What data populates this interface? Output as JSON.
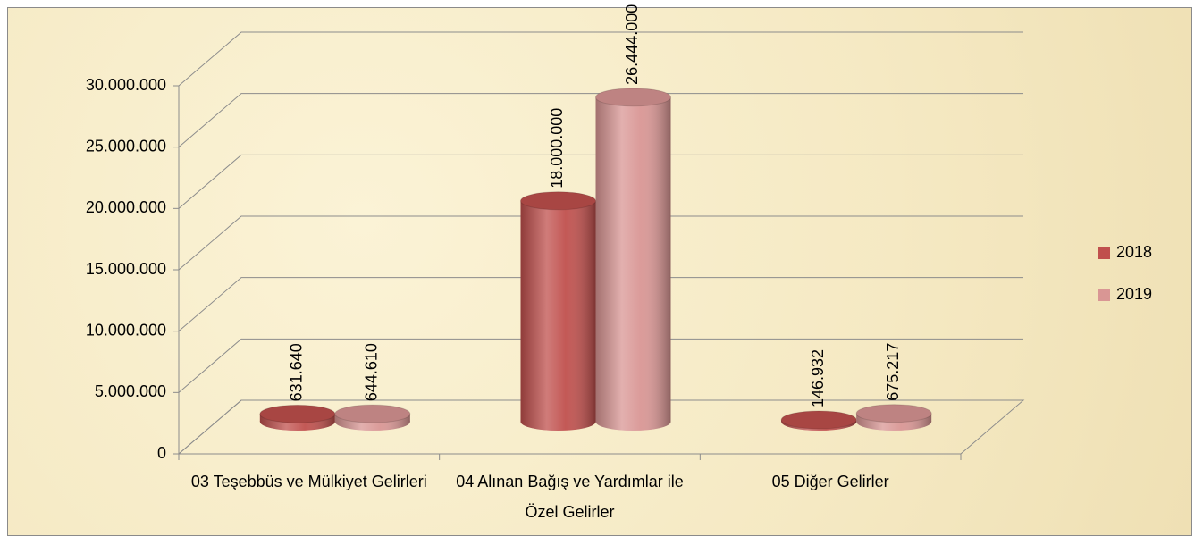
{
  "chart_data": {
    "type": "bar3d",
    "categories": [
      "03 Teşebbüs ve Mülkiyet Gelirleri",
      "04 Alınan Bağış ve Yardımlar ile Özel Gelirler",
      "05 Diğer Gelirler"
    ],
    "series": [
      {
        "name": "2018",
        "color": "#c0504d",
        "values": [
          631640,
          18000000,
          146932
        ],
        "value_labels": [
          "631.640",
          "18.000.000",
          "146.932"
        ]
      },
      {
        "name": "2019",
        "color": "#d99694",
        "values": [
          644610,
          26444000,
          675217
        ],
        "value_labels": [
          "644.610",
          "26.444.000",
          "675.217"
        ]
      }
    ],
    "ylim": [
      0,
      30000000
    ],
    "yticks": [
      0,
      {
        "value": 5000000,
        "label": "5.000.000"
      },
      {
        "value": 10000000,
        "label": "10.000.000"
      },
      {
        "value": 15000000,
        "label": "15.000.000"
      },
      {
        "value": 20000000,
        "label": "20.000.000"
      },
      {
        "value": 25000000,
        "label": "25.000.000"
      },
      {
        "value": 30000000,
        "label": "30.000.000"
      }
    ],
    "grid": true,
    "legend": "right"
  }
}
